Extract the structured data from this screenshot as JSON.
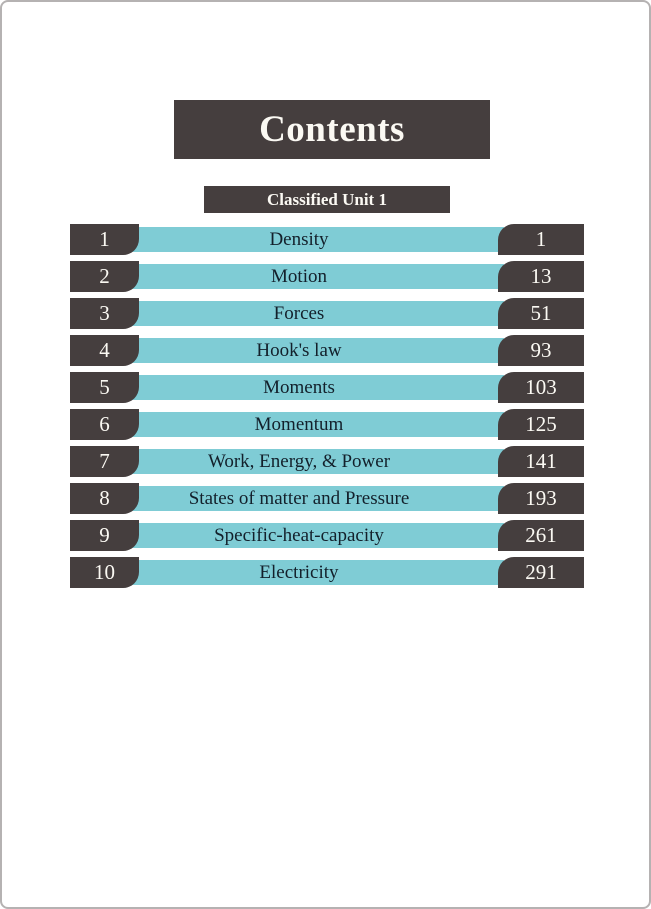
{
  "header": {
    "title": "Contents",
    "section": "Classified Unit 1"
  },
  "colors": {
    "charcoal": "#453e3e",
    "teal": "#7fccd5",
    "title_ink": "#13202b",
    "badge_text": "#fbf9f3",
    "page_border": "#b5b2b2"
  },
  "toc": {
    "rows": [
      {
        "num": "1",
        "title": "Density",
        "page": "1"
      },
      {
        "num": "2",
        "title": "Motion",
        "page": "13"
      },
      {
        "num": "3",
        "title": "Forces",
        "page": "51"
      },
      {
        "num": "4",
        "title": "Hook's law",
        "page": "93"
      },
      {
        "num": "5",
        "title": "Moments",
        "page": "103"
      },
      {
        "num": "6",
        "title": "Momentum",
        "page": "125"
      },
      {
        "num": "7",
        "title": "Work, Energy, & Power",
        "page": "141"
      },
      {
        "num": "8",
        "title": "States of matter and Pressure",
        "page": "193"
      },
      {
        "num": "9",
        "title": "Specific-heat-capacity",
        "page": "261"
      },
      {
        "num": "10",
        "title": "Electricity",
        "page": "291"
      }
    ]
  }
}
